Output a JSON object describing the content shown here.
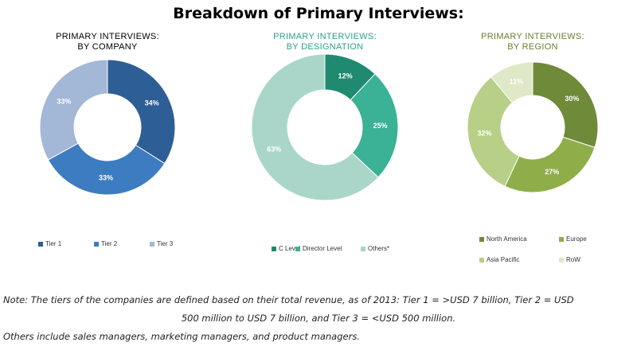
{
  "title": "Breakdown of Primary Interviews:",
  "chart_data": [
    {
      "type": "pie",
      "title": [
        "PRIMARY INTERVIEWS:",
        "BY COMPANY"
      ],
      "title_color": "#000000",
      "slices": [
        {
          "name": "Tier 1",
          "value": 34,
          "label": "34%",
          "color": "#2e5e96"
        },
        {
          "name": "Tier 2",
          "value": 33,
          "label": "33%",
          "color": "#3d7cc0"
        },
        {
          "name": "Tier 3",
          "value": 33,
          "label": "33%",
          "color": "#a3b7d6"
        }
      ]
    },
    {
      "type": "pie",
      "title": [
        "PRIMARY INTERVIEWS:",
        "BY DESIGNATION"
      ],
      "title_color": "#2aa38a",
      "slices": [
        {
          "name": "C Level",
          "value": 12,
          "label": "12%",
          "color": "#1f8a70"
        },
        {
          "name": "Director Level",
          "value": 25,
          "label": "25%",
          "color": "#3bb196"
        },
        {
          "name": "Others*",
          "value": 63,
          "label": "63%",
          "color": "#a9d6c8"
        }
      ]
    },
    {
      "type": "pie",
      "title": [
        "PRIMARY INTERVIEWS:",
        "BY REGION"
      ],
      "title_color": "#6b7f2a",
      "slices": [
        {
          "name": "North America",
          "value": 30,
          "label": "30%",
          "color": "#6f8a38"
        },
        {
          "name": "Europe",
          "value": 27,
          "label": "27%",
          "color": "#8fae4a"
        },
        {
          "name": "Asia Pacific",
          "value": 32,
          "label": "32%",
          "color": "#b8cf87"
        },
        {
          "name": "RoW",
          "value": 11,
          "label": "11%",
          "color": "#dfe8c7"
        }
      ]
    }
  ],
  "notes": {
    "tiers_line1": "Note: The tiers of the companies are defined based on their total revenue, as of 2013: Tier 1 = >USD 7 billion, Tier 2 = USD",
    "tiers_line2": "500 million to USD 7 billion, and Tier 3 = <USD 500 million.",
    "others": "Others include sales managers, marketing managers, and product managers."
  }
}
